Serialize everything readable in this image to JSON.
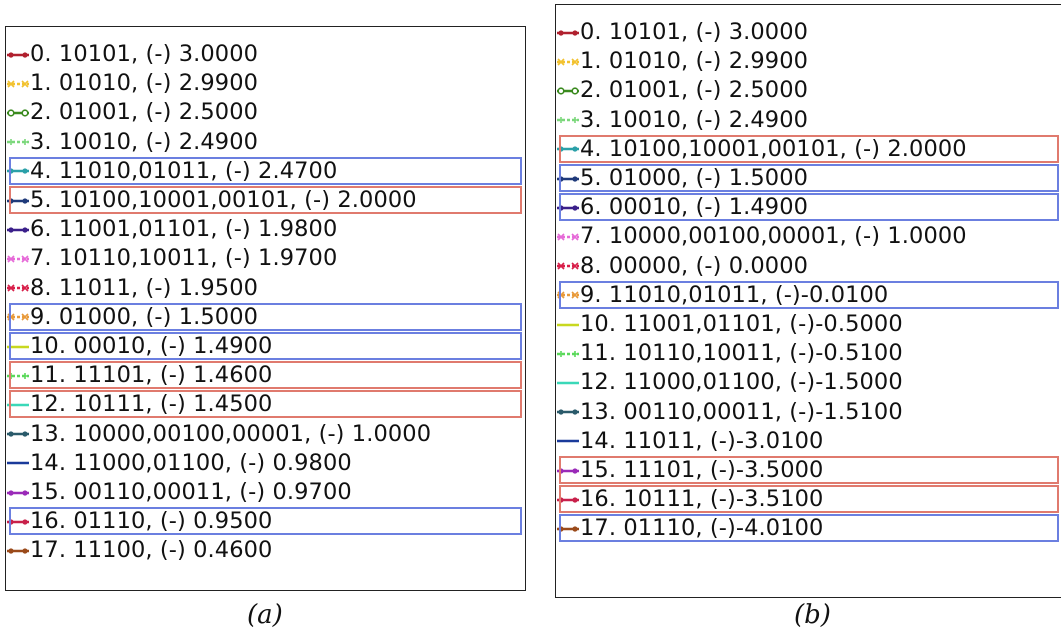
{
  "chart_data": [
    {
      "type": "legend",
      "panel_label": "(a)",
      "entries": [
        {
          "text": "0. 10101, (-) 3.0000",
          "color": "#b0202e",
          "marker": "dot"
        },
        {
          "text": "1. 01010, (-) 2.9900",
          "color": "#f2c230",
          "marker": "x"
        },
        {
          "text": "2. 01001, (-) 2.5000",
          "color": "#3a8a1e",
          "marker": "circle"
        },
        {
          "text": "3. 10010, (-) 2.4900",
          "color": "#7ad77a",
          "marker": "plus"
        },
        {
          "text": "4. 11010,01011, (-) 2.4700",
          "color": "#2aa0a8",
          "marker": "dot"
        },
        {
          "text": "5. 10100,10001,00101, (-) 2.0000",
          "color": "#1f3a7a",
          "marker": "dot"
        },
        {
          "text": "6. 11001,01101, (-) 1.9800",
          "color": "#3a1f8a",
          "marker": "dot"
        },
        {
          "text": "7. 10110,10011, (-) 1.9700",
          "color": "#e66ad8",
          "marker": "x"
        },
        {
          "text": "8. 11011, (-) 1.9500",
          "color": "#d8204a",
          "marker": "x"
        },
        {
          "text": "9. 01000, (-) 1.5000",
          "color": "#e89a3a",
          "marker": "x"
        },
        {
          "text": "10. 00010, (-) 1.4900",
          "color": "#c8d820",
          "marker": "line"
        },
        {
          "text": "11. 11101, (-) 1.4600",
          "color": "#5ad85a",
          "marker": "plus"
        },
        {
          "text": "12. 10111, (-) 1.4500",
          "color": "#3ad8b8",
          "marker": "line"
        },
        {
          "text": "13. 10000,00100,00001, (-) 1.0000",
          "color": "#2a5a6a",
          "marker": "dot"
        },
        {
          "text": "14. 11000,01100, (-) 0.9800",
          "color": "#1a3a9a",
          "marker": "line"
        },
        {
          "text": "15. 00110,00011, (-) 0.9700",
          "color": "#9a2ab8",
          "marker": "dot"
        },
        {
          "text": "16. 01110, (-) 0.9500",
          "color": "#c8204a",
          "marker": "dot"
        },
        {
          "text": "17. 11100, (-) 0.4600",
          "color": "#9a4a1a",
          "marker": "dot"
        }
      ],
      "highlights": [
        {
          "entry": 4,
          "color": "#6b7fe0"
        },
        {
          "entry": 5,
          "color": "#e07a6e"
        },
        {
          "entry": 9,
          "color": "#6b7fe0"
        },
        {
          "entry": 10,
          "color": "#6b7fe0"
        },
        {
          "entry": 11,
          "color": "#e07a6e"
        },
        {
          "entry": 12,
          "color": "#e07a6e"
        },
        {
          "entry": 16,
          "color": "#6b7fe0"
        }
      ]
    },
    {
      "type": "legend",
      "panel_label": "(b)",
      "entries": [
        {
          "text": "0. 10101, (-) 3.0000",
          "color": "#b0202e",
          "marker": "dot"
        },
        {
          "text": "1. 01010, (-) 2.9900",
          "color": "#f2c230",
          "marker": "x"
        },
        {
          "text": "2. 01001, (-) 2.5000",
          "color": "#3a8a1e",
          "marker": "circle"
        },
        {
          "text": "3. 10010, (-) 2.4900",
          "color": "#7ad77a",
          "marker": "plus"
        },
        {
          "text": "4. 10100,10001,00101, (-) 2.0000",
          "color": "#2aa0a8",
          "marker": "dot"
        },
        {
          "text": "5. 01000, (-) 1.5000",
          "color": "#1f3a7a",
          "marker": "dot"
        },
        {
          "text": "6. 00010, (-) 1.4900",
          "color": "#3a1f8a",
          "marker": "dot"
        },
        {
          "text": "7. 10000,00100,00001, (-) 1.0000",
          "color": "#e66ad8",
          "marker": "x"
        },
        {
          "text": "8. 00000, (-) 0.0000",
          "color": "#d8204a",
          "marker": "x"
        },
        {
          "text": "9. 11010,01011, (-)-0.0100",
          "color": "#e89a3a",
          "marker": "x"
        },
        {
          "text": "10. 11001,01101, (-)-0.5000",
          "color": "#c8d820",
          "marker": "line"
        },
        {
          "text": "11. 10110,10011, (-)-0.5100",
          "color": "#5ad85a",
          "marker": "plus"
        },
        {
          "text": "12. 11000,01100, (-)-1.5000",
          "color": "#3ad8b8",
          "marker": "line"
        },
        {
          "text": "13. 00110,00011, (-)-1.5100",
          "color": "#2a5a6a",
          "marker": "dot"
        },
        {
          "text": "14. 11011, (-)-3.0100",
          "color": "#1a3a9a",
          "marker": "line"
        },
        {
          "text": "15. 11101, (-)-3.5000",
          "color": "#9a2ab8",
          "marker": "dot"
        },
        {
          "text": "16. 10111, (-)-3.5100",
          "color": "#c8204a",
          "marker": "dot"
        },
        {
          "text": "17. 01110, (-)-4.0100",
          "color": "#9a4a1a",
          "marker": "dot"
        }
      ],
      "highlights": [
        {
          "entry": 4,
          "color": "#e07a6e"
        },
        {
          "entry": 5,
          "color": "#6b7fe0"
        },
        {
          "entry": 6,
          "color": "#6b7fe0"
        },
        {
          "entry": 9,
          "color": "#6b7fe0"
        },
        {
          "entry": 15,
          "color": "#e07a6e"
        },
        {
          "entry": 16,
          "color": "#e07a6e"
        },
        {
          "entry": 17,
          "color": "#6b7fe0"
        }
      ]
    }
  ]
}
